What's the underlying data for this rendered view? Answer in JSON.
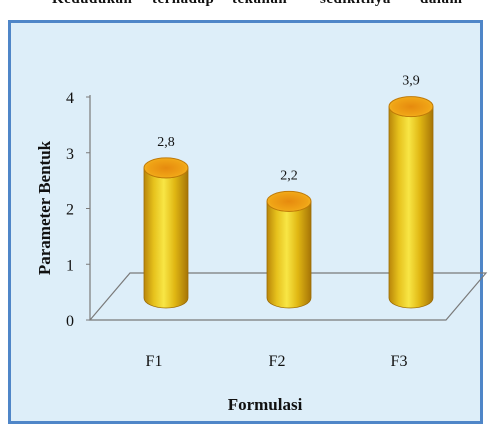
{
  "page": {
    "top_fragments": [
      "Kedudukan",
      "terhadap",
      "tekanan",
      "sedikitnya",
      "dalam"
    ]
  },
  "colors": {
    "background": "#ddeef9",
    "frame": "#4f86c8",
    "bar_light": "#f6e13a",
    "bar_mid": "#e1ba13",
    "bar_dark": "#b9860a",
    "bar_top": "#f0a014",
    "bar_top_rim": "#c07a08"
  },
  "chart_data": {
    "type": "bar",
    "style": "3d-cylinder",
    "categories": [
      "F1",
      "F2",
      "F3"
    ],
    "values": [
      2.8,
      2.2,
      3.9
    ],
    "value_labels": [
      "2,8",
      "2,2",
      "3,9"
    ],
    "title": "",
    "xlabel": "Formulasi",
    "ylabel": "Parameter Bentuk",
    "ylim": [
      0,
      4
    ],
    "yticks": [
      "0",
      "1",
      "2",
      "3",
      "4"
    ],
    "grid": false,
    "legend": "none"
  }
}
